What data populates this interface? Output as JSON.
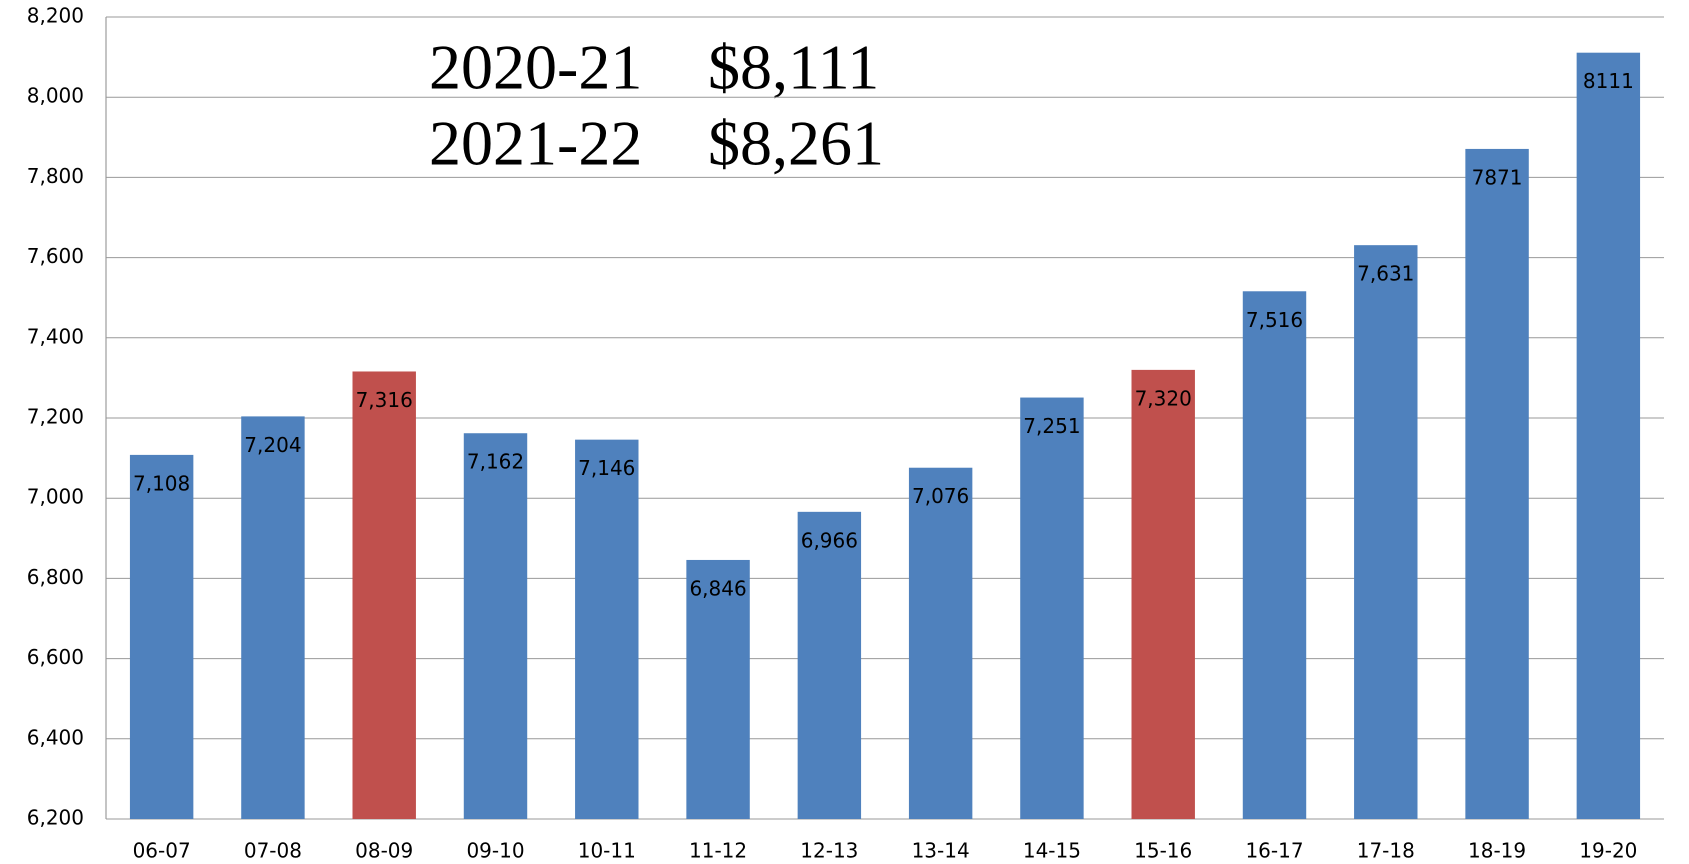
{
  "chart_data": {
    "type": "bar",
    "categories": [
      "06-07",
      "07-08",
      "08-09",
      "09-10",
      "10-11",
      "11-12",
      "12-13",
      "13-14",
      "14-15",
      "15-16",
      "16-17",
      "17-18",
      "18-19",
      "19-20"
    ],
    "values": [
      7108,
      7204,
      7316,
      7162,
      7146,
      6846,
      6966,
      7076,
      7251,
      7320,
      7516,
      7631,
      7871,
      8111
    ],
    "value_labels": [
      "7,108",
      "7,204",
      "7,316",
      "7,162",
      "7,146",
      "6,846",
      "6,966",
      "7,076",
      "7,251",
      "7,320",
      "7,516",
      "7,631",
      "7871",
      "8111"
    ],
    "colors": [
      "#4f81bd",
      "#4f81bd",
      "#c0504d",
      "#4f81bd",
      "#4f81bd",
      "#4f81bd",
      "#4f81bd",
      "#4f81bd",
      "#4f81bd",
      "#c0504d",
      "#4f81bd",
      "#4f81bd",
      "#4f81bd",
      "#4f81bd"
    ],
    "ylim": [
      6200,
      8200
    ],
    "yticks": [
      {
        "value": 6200,
        "label": "6,200"
      },
      {
        "value": 6400,
        "label": "6,400"
      },
      {
        "value": 6600,
        "label": "6,600"
      },
      {
        "value": 6800,
        "label": "6,800"
      },
      {
        "value": 7000,
        "label": "7,000"
      },
      {
        "value": 7200,
        "label": "7,200"
      },
      {
        "value": 7400,
        "label": "7,400"
      },
      {
        "value": 7600,
        "label": "7,600"
      },
      {
        "value": 7800,
        "label": "7,800"
      },
      {
        "value": 8000,
        "label": "8,000"
      },
      {
        "value": 8200,
        "label": "8,200"
      }
    ],
    "grid": true,
    "annotations": [
      [
        "2020-21",
        "$8,111"
      ],
      [
        "2021-22",
        "$8,261"
      ]
    ]
  }
}
